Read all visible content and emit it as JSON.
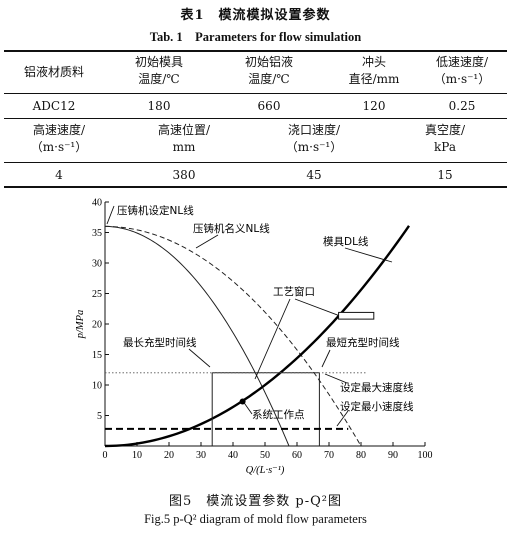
{
  "table": {
    "caption_zh": "表1　模流模拟设置参数",
    "caption_en": "Tab. 1　Parameters for flow simulation",
    "row1_headers": [
      {
        "line1": "铝液材质料",
        "line2": ""
      },
      {
        "line1": "初始模具",
        "line2": "温度/℃"
      },
      {
        "line1": "初始铝液",
        "line2": "温度/℃"
      },
      {
        "line1": "冲头",
        "line2": "直径/mm"
      },
      {
        "line1": "低速速度/",
        "line2": "（m·s⁻¹）"
      }
    ],
    "row1_values": [
      "ADC12",
      "180",
      "660",
      "120",
      "0.25"
    ],
    "row2_headers": [
      {
        "line1": "高速速度/",
        "line2": "（m·s⁻¹）"
      },
      {
        "line1": "高速位置/",
        "line2": "mm"
      },
      {
        "line1": "浇口速度/",
        "line2": "（m·s⁻¹）"
      },
      {
        "line1": "真空度/",
        "line2": "kPa"
      }
    ],
    "row2_values": [
      "4",
      "380",
      "45",
      "15"
    ]
  },
  "figure": {
    "caption_zh": "图5　模流设置参数 p-Q²图",
    "caption_en": "Fig.5 p-Q² diagram of mold flow parameters"
  },
  "chart_data": {
    "type": "line",
    "xlabel": "Q/(L·s⁻¹)",
    "ylabel": "p/MPa",
    "xlim": [
      0,
      100
    ],
    "ylim": [
      0,
      40
    ],
    "xticks": [
      0,
      10,
      20,
      30,
      40,
      50,
      60,
      70,
      80,
      90,
      100
    ],
    "yticks": [
      5,
      10,
      15,
      20,
      25,
      30,
      35,
      40
    ],
    "grid": false,
    "series": [
      {
        "name": "压铸机设定NL线",
        "style": "solid",
        "color": "#222222",
        "x": [
          0,
          10,
          20,
          30,
          40,
          50,
          57.5
        ],
        "y": [
          36,
          35.0,
          31.8,
          26.6,
          19.4,
          10.0,
          0
        ]
      },
      {
        "name": "压铸机名义NL线",
        "style": "dashed",
        "color": "#222222",
        "x": [
          0,
          10,
          20,
          30,
          40,
          50,
          60,
          70,
          80
        ],
        "y": [
          36,
          35.4,
          33.7,
          30.9,
          27.0,
          21.9,
          15.8,
          8.5,
          0
        ]
      },
      {
        "name": "模具DL线",
        "style": "solid-thick",
        "color": "#000000",
        "x": [
          0,
          10,
          20,
          30,
          40,
          50,
          60,
          70,
          80,
          90,
          95
        ],
        "y": [
          0,
          0.4,
          1.6,
          3.6,
          6.4,
          10.0,
          14.4,
          19.6,
          25.6,
          32.4,
          36.1
        ]
      }
    ],
    "lines": {
      "max_fill_time_x": 33.5,
      "min_fill_time_x": 67,
      "set_speed_y": 12,
      "min_speed_y": 2.8
    },
    "operating_point": {
      "x": 43,
      "y": 7.3
    },
    "process_window_box": {
      "x0": 73,
      "x1": 84,
      "y0": 20.8,
      "y1": 21.9
    },
    "annotations": {
      "nl_set": "压铸机设定NL线",
      "nl_nominal": "压铸机名义NL线",
      "dl": "模具DL线",
      "window": "工艺窗口",
      "max_fill": "最长充型时间线",
      "min_fill": "最短充型时间线",
      "max_speed": "设定最大速度线",
      "min_speed": "设定最小速度线",
      "op_point": "系统工作点"
    }
  }
}
